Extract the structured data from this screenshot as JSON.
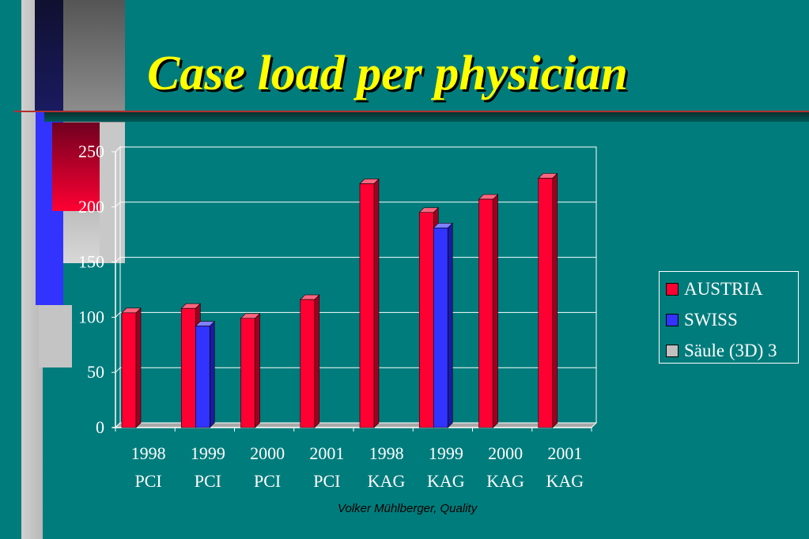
{
  "slide": {
    "title": "Case load per physician",
    "footer": "Volker Mühlberger, Quality"
  },
  "colors": {
    "background": "#007c7c",
    "title": "#ffff00",
    "austria": "#ff0033",
    "swiss": "#3333ff",
    "saeule": "#c0c0c0"
  },
  "chart_data": {
    "type": "bar",
    "categories": [
      [
        "1998",
        "PCI"
      ],
      [
        "1999",
        "PCI"
      ],
      [
        "2000",
        "PCI"
      ],
      [
        "2001",
        "PCI"
      ],
      [
        "1998",
        "KAG"
      ],
      [
        "1999",
        "KAG"
      ],
      [
        "2000",
        "KAG"
      ],
      [
        "2001",
        "KAG"
      ]
    ],
    "series": [
      {
        "name": "AUSTRIA",
        "values": [
          104,
          108,
          99,
          116,
          221,
          195,
          207,
          226
        ]
      },
      {
        "name": "SWISS",
        "values": [
          null,
          92,
          null,
          null,
          null,
          181,
          null,
          null
        ]
      },
      {
        "name": "Säule (3D) 3",
        "values": [
          null,
          null,
          null,
          null,
          null,
          null,
          null,
          null
        ]
      }
    ],
    "ylim": [
      0,
      250
    ],
    "yticks": [
      "0",
      "50",
      "100",
      "150",
      "200",
      "250"
    ],
    "grid": true,
    "legend_position": "right",
    "three_d": true
  }
}
